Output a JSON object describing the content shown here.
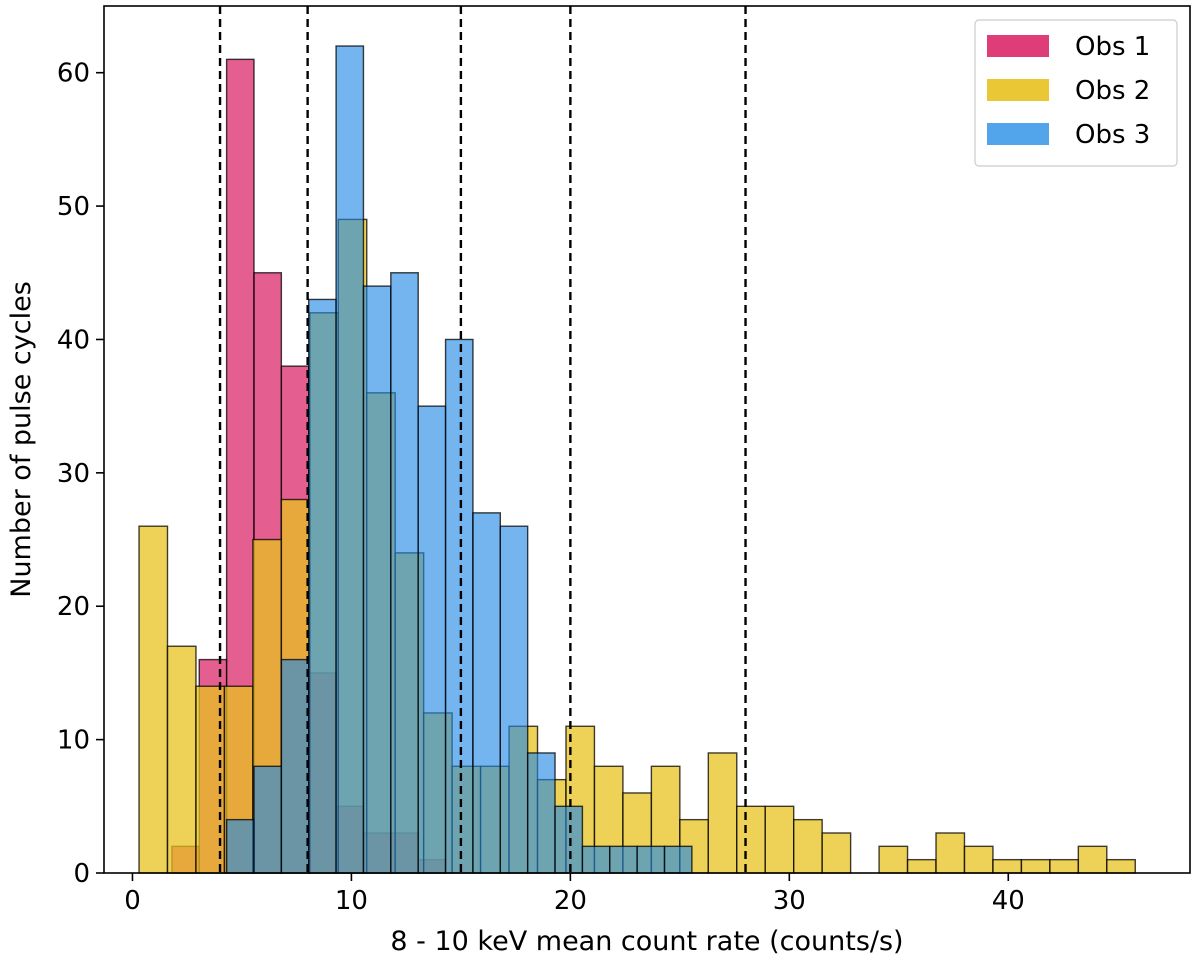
{
  "chart_data": {
    "type": "bar",
    "title": "",
    "xlabel": "8 - 10 keV mean count rate (counts/s)",
    "ylabel": "Number of pulse cycles",
    "xlim": [
      -1.3,
      48.3
    ],
    "ylim": [
      0,
      65
    ],
    "xticks": [
      0,
      10,
      20,
      30,
      40
    ],
    "yticks": [
      0,
      10,
      20,
      30,
      40,
      50,
      60
    ],
    "grid": false,
    "legend_position": "top-right",
    "vlines": [
      4,
      8,
      15,
      20,
      28
    ],
    "series": [
      {
        "name": "Obs 1",
        "color": "#D81B60",
        "alpha": 0.7,
        "bins": [
          {
            "x0": 1.8,
            "x1": 3.05,
            "value": 2
          },
          {
            "x0": 3.05,
            "x1": 4.3,
            "value": 16
          },
          {
            "x0": 4.3,
            "x1": 5.55,
            "value": 61
          },
          {
            "x0": 5.55,
            "x1": 6.8,
            "value": 45
          },
          {
            "x0": 6.8,
            "x1": 8.05,
            "value": 38
          },
          {
            "x0": 8.05,
            "x1": 9.3,
            "value": 15
          },
          {
            "x0": 9.3,
            "x1": 10.55,
            "value": 5
          },
          {
            "x0": 10.55,
            "x1": 11.8,
            "value": 3
          },
          {
            "x0": 11.8,
            "x1": 13.05,
            "value": 3
          },
          {
            "x0": 13.05,
            "x1": 14.3,
            "value": 1
          }
        ]
      },
      {
        "name": "Obs 2",
        "color": "#E8C21F",
        "alpha": 0.75,
        "bins": [
          {
            "x0": 0.3,
            "x1": 1.6,
            "value": 26
          },
          {
            "x0": 1.6,
            "x1": 2.9,
            "value": 17
          },
          {
            "x0": 2.9,
            "x1": 4.2,
            "value": 14
          },
          {
            "x0": 4.2,
            "x1": 5.5,
            "value": 14
          },
          {
            "x0": 5.5,
            "x1": 6.8,
            "value": 25
          },
          {
            "x0": 6.8,
            "x1": 8.1,
            "value": 28
          },
          {
            "x0": 8.1,
            "x1": 9.4,
            "value": 42
          },
          {
            "x0": 9.4,
            "x1": 10.7,
            "value": 49
          },
          {
            "x0": 10.7,
            "x1": 12.0,
            "value": 36
          },
          {
            "x0": 12.0,
            "x1": 13.3,
            "value": 24
          },
          {
            "x0": 13.3,
            "x1": 14.6,
            "value": 12
          },
          {
            "x0": 14.6,
            "x1": 15.9,
            "value": 8
          },
          {
            "x0": 15.9,
            "x1": 17.2,
            "value": 8
          },
          {
            "x0": 17.2,
            "x1": 18.5,
            "value": 11
          },
          {
            "x0": 18.5,
            "x1": 19.8,
            "value": 7
          },
          {
            "x0": 19.8,
            "x1": 21.1,
            "value": 11
          },
          {
            "x0": 21.1,
            "x1": 22.4,
            "value": 8
          },
          {
            "x0": 22.4,
            "x1": 23.7,
            "value": 6
          },
          {
            "x0": 23.7,
            "x1": 25.0,
            "value": 8
          },
          {
            "x0": 25.0,
            "x1": 26.3,
            "value": 4
          },
          {
            "x0": 26.3,
            "x1": 27.6,
            "value": 9
          },
          {
            "x0": 27.6,
            "x1": 28.9,
            "value": 5
          },
          {
            "x0": 28.9,
            "x1": 30.2,
            "value": 5
          },
          {
            "x0": 30.2,
            "x1": 31.5,
            "value": 4
          },
          {
            "x0": 31.5,
            "x1": 32.8,
            "value": 3
          },
          {
            "x0": 34.1,
            "x1": 35.4,
            "value": 2
          },
          {
            "x0": 35.4,
            "x1": 36.7,
            "value": 1
          },
          {
            "x0": 36.7,
            "x1": 38.0,
            "value": 3
          },
          {
            "x0": 38.0,
            "x1": 39.3,
            "value": 2
          },
          {
            "x0": 39.3,
            "x1": 40.6,
            "value": 1
          },
          {
            "x0": 40.6,
            "x1": 41.9,
            "value": 1
          },
          {
            "x0": 41.9,
            "x1": 43.2,
            "value": 1
          },
          {
            "x0": 43.2,
            "x1": 44.5,
            "value": 2
          },
          {
            "x0": 44.5,
            "x1": 45.8,
            "value": 1
          }
        ]
      },
      {
        "name": "Obs 3",
        "color": "#1E88E5",
        "alpha": 0.62,
        "bins": [
          {
            "x0": 4.3,
            "x1": 5.55,
            "value": 4
          },
          {
            "x0": 5.55,
            "x1": 6.8,
            "value": 8
          },
          {
            "x0": 6.8,
            "x1": 8.05,
            "value": 16
          },
          {
            "x0": 8.05,
            "x1": 9.3,
            "value": 43
          },
          {
            "x0": 9.3,
            "x1": 10.55,
            "value": 62
          },
          {
            "x0": 10.55,
            "x1": 11.8,
            "value": 44
          },
          {
            "x0": 11.8,
            "x1": 13.05,
            "value": 45
          },
          {
            "x0": 13.05,
            "x1": 14.3,
            "value": 35
          },
          {
            "x0": 14.3,
            "x1": 15.55,
            "value": 40
          },
          {
            "x0": 15.55,
            "x1": 16.8,
            "value": 27
          },
          {
            "x0": 16.8,
            "x1": 18.05,
            "value": 26
          },
          {
            "x0": 18.05,
            "x1": 19.3,
            "value": 9
          },
          {
            "x0": 19.3,
            "x1": 20.55,
            "value": 5
          },
          {
            "x0": 20.55,
            "x1": 21.8,
            "value": 2
          },
          {
            "x0": 21.8,
            "x1": 23.05,
            "value": 2
          },
          {
            "x0": 23.05,
            "x1": 24.3,
            "value": 2
          },
          {
            "x0": 24.3,
            "x1": 25.55,
            "value": 2
          }
        ]
      }
    ]
  }
}
